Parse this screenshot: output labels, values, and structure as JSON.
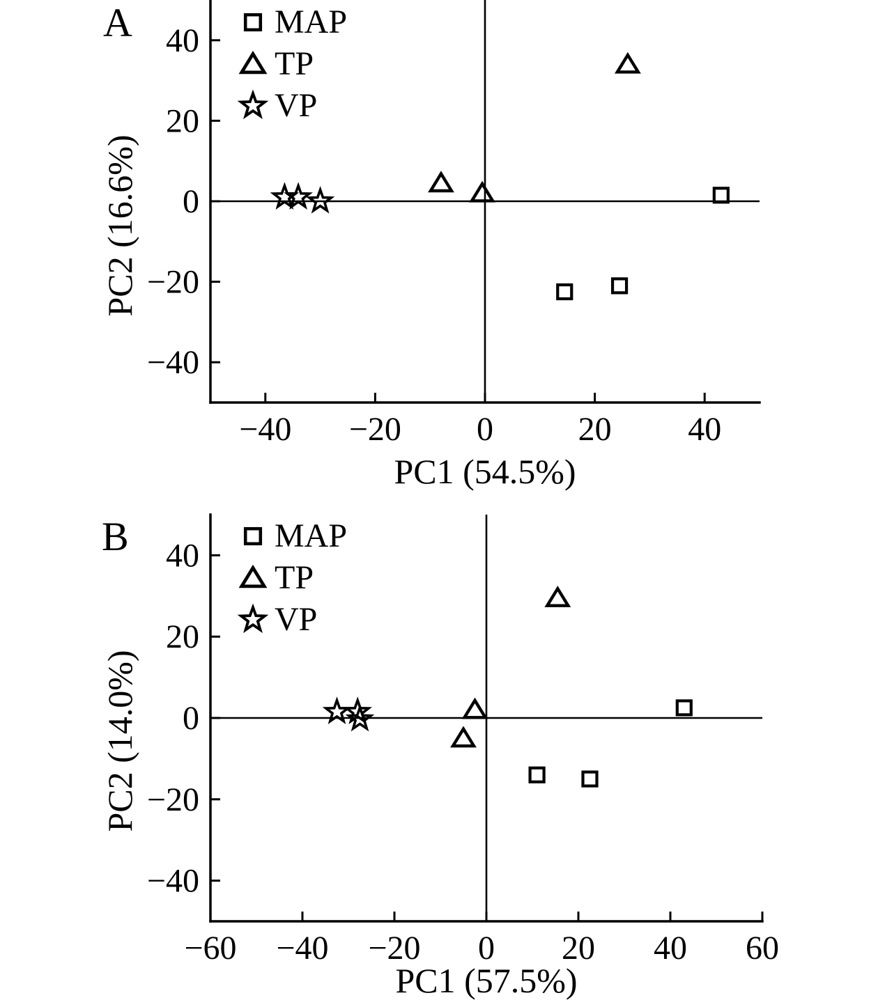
{
  "figure": {
    "background": "#ffffff",
    "ink_color": "#000000",
    "panels": [
      "A",
      "B"
    ]
  },
  "chart_data": [
    {
      "id": "A",
      "panel_label": "A",
      "type": "scatter",
      "title": "",
      "xlabel": "PC1 (54.5%)",
      "ylabel": "PC2 (16.6%)",
      "xlim": [
        -50,
        50
      ],
      "ylim": [
        -50,
        50
      ],
      "xticks": [
        -40,
        -20,
        0,
        20,
        40
      ],
      "yticks": [
        -40,
        -20,
        0,
        20,
        40
      ],
      "grid": false,
      "legend_position": "upper-left-inside",
      "legend": [
        "MAP",
        "TP",
        "VP"
      ],
      "series": [
        {
          "name": "MAP",
          "marker": "square",
          "points": [
            [
              43,
              1.5
            ],
            [
              14.5,
              -22.5
            ],
            [
              24.5,
              -21
            ]
          ]
        },
        {
          "name": "TP",
          "marker": "triangle",
          "points": [
            [
              26,
              34
            ],
            [
              -8,
              4.5
            ],
            [
              -0.5,
              2
            ]
          ]
        },
        {
          "name": "VP",
          "marker": "star",
          "points": [
            [
              -36.5,
              1
            ],
            [
              -34,
              1
            ],
            [
              -30,
              0
            ]
          ]
        }
      ]
    },
    {
      "id": "B",
      "panel_label": "B",
      "type": "scatter",
      "title": "",
      "xlabel": "PC1 (57.5%)",
      "ylabel": "PC2 (14.0%)",
      "xlim": [
        -60,
        60
      ],
      "ylim": [
        -50,
        50
      ],
      "xticks": [
        -60,
        -40,
        -20,
        0,
        20,
        40,
        60
      ],
      "yticks": [
        -40,
        -20,
        0,
        20,
        40
      ],
      "grid": false,
      "legend_position": "upper-left-inside",
      "legend": [
        "MAP",
        "TP",
        "VP"
      ],
      "series": [
        {
          "name": "MAP",
          "marker": "square",
          "points": [
            [
              43,
              2.5
            ],
            [
              11,
              -14
            ],
            [
              22.5,
              -15
            ]
          ]
        },
        {
          "name": "TP",
          "marker": "triangle",
          "points": [
            [
              15.5,
              29.5
            ],
            [
              -2.5,
              2
            ],
            [
              -5,
              -5
            ]
          ]
        },
        {
          "name": "VP",
          "marker": "star",
          "points": [
            [
              -32.5,
              1.5
            ],
            [
              -28,
              1.5
            ],
            [
              -27.5,
              -0.3
            ]
          ]
        }
      ]
    }
  ]
}
